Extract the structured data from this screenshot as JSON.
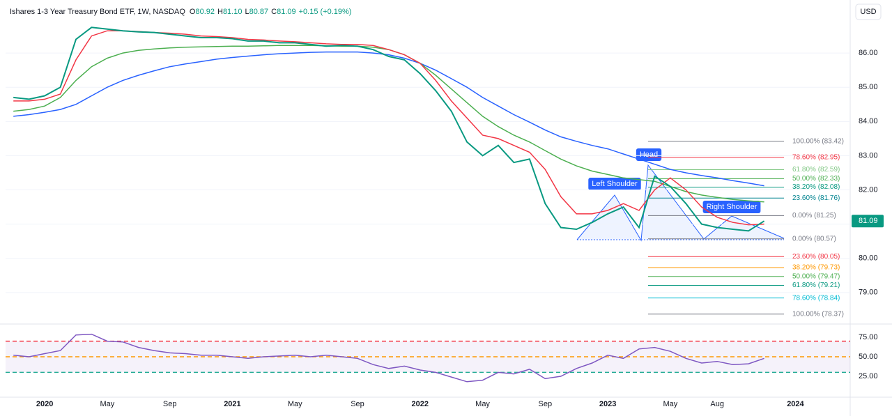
{
  "header": {
    "title": "Ishares 1-3 Year Treasury Bond ETF, 1W, NASDAQ",
    "ohlc": [
      {
        "key": "O",
        "value": "80.92"
      },
      {
        "key": "H",
        "value": "81.10"
      },
      {
        "key": "L",
        "value": "80.87"
      },
      {
        "key": "C",
        "value": "81.09"
      }
    ],
    "change": "+0.15 (+0.19%)",
    "currency": "USD"
  },
  "chart_data": [
    {
      "type": "line",
      "categories": [
        null,
        null,
        "2020",
        null,
        null,
        null,
        "May",
        null,
        null,
        null,
        "Sep",
        null,
        null,
        null,
        "2021",
        null,
        null,
        null,
        "May",
        null,
        null,
        null,
        "Sep",
        null,
        null,
        null,
        "2022",
        null,
        null,
        null,
        "May",
        null,
        null,
        null,
        "Sep",
        null,
        null,
        null,
        "2023",
        null,
        null,
        null,
        "May",
        null,
        null,
        "Aug",
        null,
        null,
        null,
        null,
        "2024",
        null,
        null,
        null
      ],
      "series": [
        {
          "color": "#2962ff",
          "values": [
            84.15,
            84.2,
            84.27,
            84.35,
            84.5,
            84.75,
            85.0,
            85.2,
            85.35,
            85.48,
            85.6,
            85.68,
            85.75,
            85.82,
            85.87,
            85.91,
            85.95,
            85.98,
            86.0,
            86.02,
            86.03,
            86.03,
            86.03,
            86.0,
            85.95,
            85.85,
            85.7,
            85.5,
            85.25,
            85.0,
            84.7,
            84.45,
            84.2,
            83.98,
            83.75,
            83.55,
            83.42,
            83.3,
            83.2,
            83.05,
            82.9,
            82.75,
            82.6,
            82.5,
            82.42,
            82.35,
            82.27,
            82.2,
            82.12,
            null,
            null,
            null,
            null,
            null
          ]
        },
        {
          "color": "#4caf50",
          "values": [
            84.3,
            84.35,
            84.45,
            84.7,
            85.2,
            85.6,
            85.85,
            86.0,
            86.08,
            86.12,
            86.15,
            86.17,
            86.18,
            86.19,
            86.2,
            86.2,
            86.21,
            86.22,
            86.22,
            86.22,
            86.21,
            86.2,
            86.2,
            86.17,
            86.1,
            85.95,
            85.7,
            85.35,
            84.95,
            84.55,
            84.15,
            83.85,
            83.6,
            83.4,
            83.15,
            82.9,
            82.7,
            82.55,
            82.45,
            82.35,
            82.3,
            82.25,
            82.1,
            81.95,
            81.85,
            81.78,
            81.72,
            81.68,
            81.65,
            null,
            null,
            null,
            null,
            null
          ]
        },
        {
          "color": "#f23645",
          "values": [
            84.6,
            84.6,
            84.65,
            84.8,
            85.8,
            86.5,
            86.65,
            86.65,
            86.63,
            86.6,
            86.58,
            86.55,
            86.5,
            86.48,
            86.45,
            86.4,
            86.38,
            86.35,
            86.33,
            86.3,
            86.27,
            86.25,
            86.25,
            86.22,
            86.1,
            85.95,
            85.7,
            85.2,
            84.6,
            84.1,
            83.6,
            83.5,
            83.3,
            83.1,
            82.6,
            81.8,
            81.3,
            81.3,
            81.4,
            81.6,
            81.4,
            82.0,
            82.35,
            82.0,
            81.5,
            81.2,
            81.05,
            80.98,
            81.0,
            null,
            null,
            null,
            null,
            null
          ]
        },
        {
          "color": "#089981",
          "values": [
            84.7,
            84.65,
            84.75,
            85.0,
            86.4,
            86.75,
            86.7,
            86.65,
            86.62,
            86.6,
            86.55,
            86.5,
            86.45,
            86.45,
            86.42,
            86.35,
            86.35,
            86.3,
            86.3,
            86.25,
            86.2,
            86.22,
            86.2,
            86.1,
            85.9,
            85.8,
            85.4,
            84.9,
            84.3,
            83.4,
            83.0,
            83.3,
            82.8,
            82.9,
            81.6,
            80.9,
            80.85,
            81.05,
            81.3,
            81.5,
            80.9,
            82.4,
            82.1,
            81.6,
            81.0,
            80.9,
            80.85,
            80.8,
            81.09,
            null,
            null,
            null,
            null,
            null
          ]
        }
      ],
      "ylim": [
        78.08,
        87.55
      ],
      "yticks": [
        {
          "value": 79,
          "label": "79.00"
        },
        {
          "value": 80,
          "label": "80.00"
        },
        {
          "value": 81,
          "label": "81.00"
        },
        {
          "value": 82,
          "label": "82.00"
        },
        {
          "value": 83,
          "label": "83.00"
        },
        {
          "value": 84,
          "label": "84.00"
        },
        {
          "value": 85,
          "label": "85.00"
        },
        {
          "value": 86,
          "label": "86.00"
        }
      ],
      "grid": true,
      "last_price": 81.09,
      "fib_levels": [
        {
          "label": "100.00% (83.42)",
          "value": 83.42,
          "color": "#787b86"
        },
        {
          "label": "78.60% (82.95)",
          "value": 82.95,
          "color": "#f23645"
        },
        {
          "label": "61.80% (82.59)",
          "value": 82.59,
          "color": "#81c784"
        },
        {
          "label": "50.00% (82.33)",
          "value": 82.33,
          "color": "#4caf50"
        },
        {
          "label": "38.20% (82.08)",
          "value": 82.08,
          "color": "#089981"
        },
        {
          "label": "23.60% (81.76)",
          "value": 81.76,
          "color": "#00838f"
        },
        {
          "label": "0.00% (81.25)",
          "value": 81.25,
          "color": "#787b86"
        },
        {
          "label": "0.00% (80.57)",
          "value": 80.57,
          "color": "#787b86"
        },
        {
          "label": "23.60% (80.05)",
          "value": 80.05,
          "color": "#f23645"
        },
        {
          "label": "38.20% (79.73)",
          "value": 79.73,
          "color": "#ff9800"
        },
        {
          "label": "50.00% (79.47)",
          "value": 79.47,
          "color": "#4caf50"
        },
        {
          "label": "61.80% (79.21)",
          "value": 79.21,
          "color": "#089981"
        },
        {
          "label": "78.60% (78.84)",
          "value": 78.84,
          "color": "#00bcd4"
        },
        {
          "label": "100.00% (78.37)",
          "value": 78.37,
          "color": "#787b86"
        }
      ],
      "annotations": [
        "Left Shoulder",
        "Head",
        "Right Shoulder"
      ]
    },
    {
      "type": "line",
      "series": [
        {
          "color": "#7e57c2",
          "values": [
            52,
            50,
            54,
            58,
            78,
            79,
            70,
            69,
            62,
            58,
            55,
            54,
            52,
            52,
            50,
            48,
            50,
            51,
            52,
            50,
            52,
            50,
            48,
            40,
            35,
            38,
            33,
            30,
            24,
            18,
            20,
            30,
            28,
            34,
            22,
            25,
            35,
            42,
            52,
            48,
            60,
            62,
            57,
            48,
            42,
            44,
            40,
            41,
            48,
            null,
            null,
            null,
            null,
            null
          ]
        }
      ],
      "ylim": [
        -1.8,
        92
      ],
      "yticks": [
        {
          "value": 25,
          "label": "25.00"
        },
        {
          "value": 50,
          "label": "50.00"
        },
        {
          "value": 75,
          "label": "75.00"
        }
      ],
      "levels": [
        {
          "value": 70,
          "color": "#f23645"
        },
        {
          "value": 50,
          "color": "#ff9800"
        },
        {
          "value": 30,
          "color": "#22ab94"
        }
      ]
    }
  ]
}
